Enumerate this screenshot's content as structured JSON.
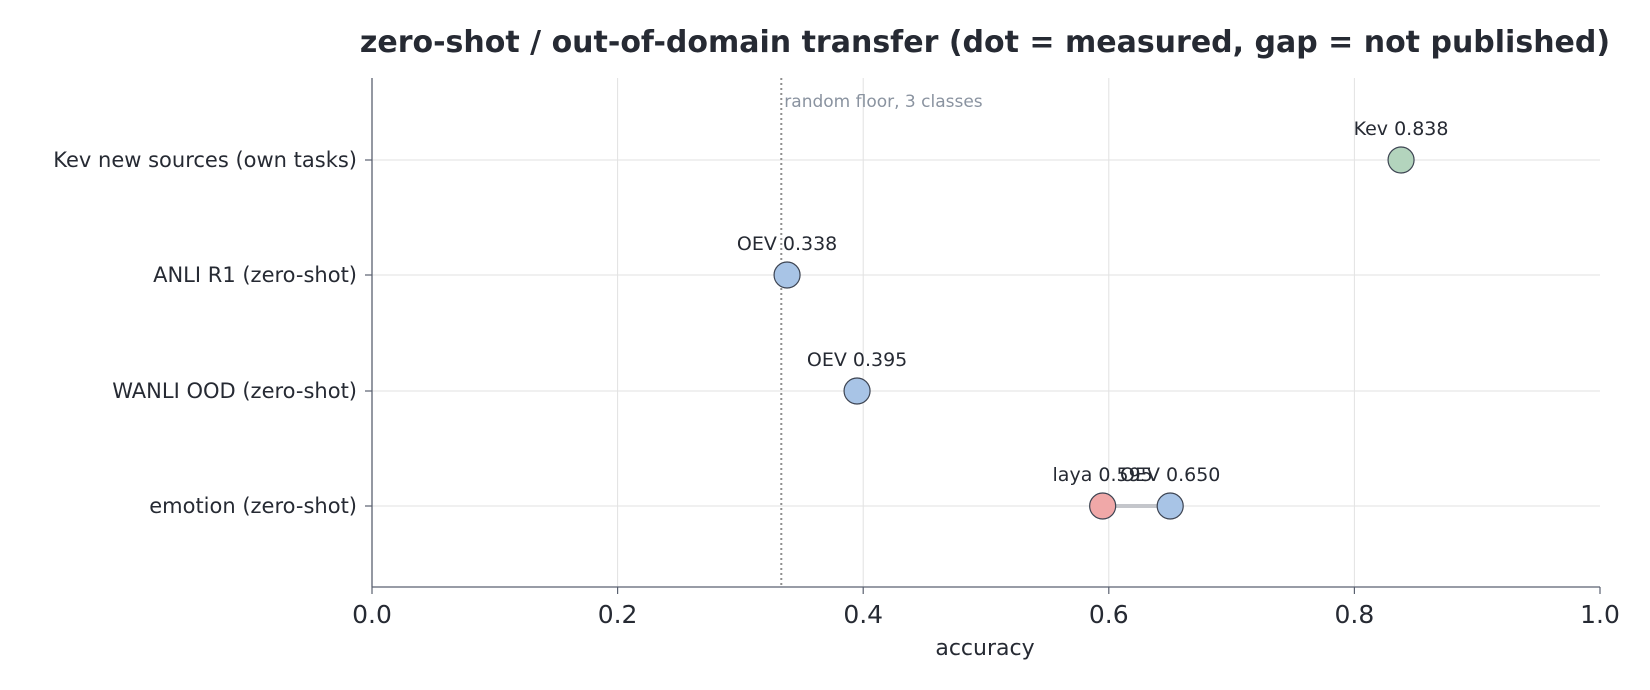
{
  "chart_data": {
    "type": "scatter",
    "title": "zero-shot / out-of-domain transfer (dot = measured, gap = not published)",
    "xlabel": "accuracy",
    "ylabel": "",
    "xlim": [
      0.0,
      1.0
    ],
    "xticks": [
      "0.0",
      "0.2",
      "0.4",
      "0.6",
      "0.8",
      "1.0"
    ],
    "grid": true,
    "categories": [
      "Kev new sources (own tasks)",
      "ANLI R1 (zero-shot)",
      "WANLI OOD (zero-shot)",
      "emotion (zero-shot)"
    ],
    "reference_line": {
      "x": 0.3333,
      "label": "random floor, 3 classes"
    },
    "points": [
      {
        "category": "Kev new sources (own tasks)",
        "x": 0.838,
        "label": "Kev 0.838",
        "color": "#b3d4bd"
      },
      {
        "category": "ANLI R1 (zero-shot)",
        "x": 0.338,
        "label": "OEV 0.338",
        "color": "#a8c4e6"
      },
      {
        "category": "WANLI OOD (zero-shot)",
        "x": 0.395,
        "label": "OEV 0.395",
        "color": "#a8c4e6"
      },
      {
        "category": "emotion (zero-shot)",
        "x": 0.595,
        "label": "laya 0.595",
        "color": "#f0a8a8"
      },
      {
        "category": "emotion (zero-shot)",
        "x": 0.65,
        "label": "OEV 0.650",
        "color": "#a8c4e6"
      }
    ],
    "colors": {
      "grid": "#e2e2e2",
      "axis": "#5a6170",
      "reference": "#8f8f8f",
      "connector": "#c4c6cb",
      "marker_edge": "#3d4452"
    }
  }
}
